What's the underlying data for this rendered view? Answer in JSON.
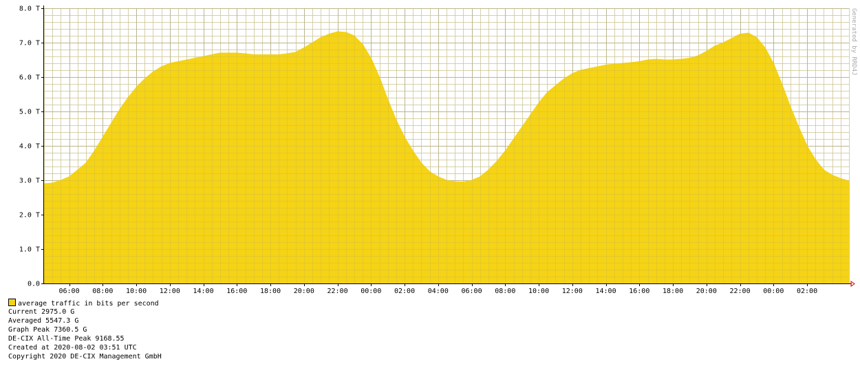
{
  "chart_data": {
    "type": "area",
    "title": "",
    "xlabel": "",
    "ylabel": "",
    "vertical_label": "Generated by RRD4J",
    "ylim": [
      0,
      8.0
    ],
    "y_unit": "T",
    "y_ticks": [
      "0.0",
      "1.0 T",
      "2.0 T",
      "3.0 T",
      "4.0 T",
      "5.0 T",
      "6.0 T",
      "7.0 T",
      "8.0 T"
    ],
    "x_ticks": [
      {
        "label": "06:00",
        "hours_from_start": 1.5
      },
      {
        "label": "08:00",
        "hours_from_start": 3.5
      },
      {
        "label": "10:00",
        "hours_from_start": 5.5
      },
      {
        "label": "12:00",
        "hours_from_start": 7.5
      },
      {
        "label": "14:00",
        "hours_from_start": 9.5
      },
      {
        "label": "16:00",
        "hours_from_start": 11.5
      },
      {
        "label": "18:00",
        "hours_from_start": 13.5
      },
      {
        "label": "20:00",
        "hours_from_start": 15.5
      },
      {
        "label": "22:00",
        "hours_from_start": 17.5
      },
      {
        "label": "00:00",
        "hours_from_start": 19.5
      },
      {
        "label": "02:00",
        "hours_from_start": 21.5
      },
      {
        "label": "04:00",
        "hours_from_start": 23.5
      },
      {
        "label": "06:00",
        "hours_from_start": 25.5
      },
      {
        "label": "08:00",
        "hours_from_start": 27.5
      },
      {
        "label": "10:00",
        "hours_from_start": 29.5
      },
      {
        "label": "12:00",
        "hours_from_start": 31.5
      },
      {
        "label": "14:00",
        "hours_from_start": 33.5
      },
      {
        "label": "16:00",
        "hours_from_start": 35.5
      },
      {
        "label": "18:00",
        "hours_from_start": 37.5
      },
      {
        "label": "20:00",
        "hours_from_start": 39.5
      },
      {
        "label": "22:00",
        "hours_from_start": 41.5
      },
      {
        "label": "00:00",
        "hours_from_start": 43.5
      },
      {
        "label": "02:00",
        "hours_from_start": 45.5
      }
    ],
    "x_range_hours": [
      0,
      48
    ],
    "grid": true,
    "series": [
      {
        "name": "average traffic in bits per second",
        "color": "#f5d316",
        "x_hours": [
          0,
          0.5,
          1,
          1.5,
          2,
          2.5,
          3,
          3.5,
          4,
          4.5,
          5,
          5.5,
          6,
          6.5,
          7,
          7.5,
          8,
          8.5,
          9,
          9.5,
          10,
          10.5,
          11,
          11.5,
          12,
          12.5,
          13,
          13.5,
          14,
          14.5,
          15,
          15.5,
          16,
          16.5,
          17,
          17.5,
          18,
          18.5,
          19,
          19.5,
          20,
          20.5,
          21,
          21.5,
          22,
          22.5,
          23,
          23.5,
          24,
          24.5,
          25,
          25.5,
          26,
          26.5,
          27,
          27.5,
          28,
          28.5,
          29,
          29.5,
          30,
          30.5,
          31,
          31.5,
          32,
          32.5,
          33,
          33.5,
          34,
          34.5,
          35,
          35.5,
          36,
          36.5,
          37,
          37.5,
          38,
          38.5,
          39,
          39.5,
          40,
          40.5,
          41,
          41.5,
          42,
          42.5,
          43,
          43.5,
          44,
          44.5,
          45,
          45.5,
          46,
          46.5,
          47,
          47.5,
          48
        ],
        "values_T": [
          2.9,
          2.92,
          3.0,
          3.1,
          3.3,
          3.5,
          3.85,
          4.25,
          4.65,
          5.05,
          5.4,
          5.7,
          5.95,
          6.15,
          6.3,
          6.4,
          6.45,
          6.5,
          6.55,
          6.6,
          6.65,
          6.7,
          6.7,
          6.7,
          6.68,
          6.65,
          6.65,
          6.65,
          6.65,
          6.68,
          6.72,
          6.85,
          7.0,
          7.15,
          7.25,
          7.32,
          7.3,
          7.2,
          6.95,
          6.55,
          6.0,
          5.35,
          4.75,
          4.25,
          3.85,
          3.5,
          3.25,
          3.1,
          3.0,
          2.96,
          2.95,
          3.0,
          3.1,
          3.3,
          3.55,
          3.85,
          4.2,
          4.55,
          4.9,
          5.25,
          5.55,
          5.75,
          5.95,
          6.1,
          6.2,
          6.25,
          6.3,
          6.35,
          6.38,
          6.4,
          6.42,
          6.45,
          6.5,
          6.52,
          6.5,
          6.5,
          6.52,
          6.55,
          6.62,
          6.75,
          6.9,
          7.0,
          7.12,
          7.25,
          7.28,
          7.15,
          6.85,
          6.4,
          5.8,
          5.15,
          4.55,
          4.0,
          3.6,
          3.3,
          3.15,
          3.05,
          2.98
        ]
      }
    ]
  },
  "legend": {
    "entry": "average traffic in bits per second",
    "current": "Current 2975.0 G",
    "averaged": "Averaged 5547.3 G",
    "graph_peak": "Graph Peak 7360.5 G",
    "alltime_peak": "DE-CIX All-Time Peak 9168.55",
    "created": "Created at 2020-08-02 03:51 UTC",
    "copyright": "Copyright 2020 DE-CIX Management GmbH"
  }
}
